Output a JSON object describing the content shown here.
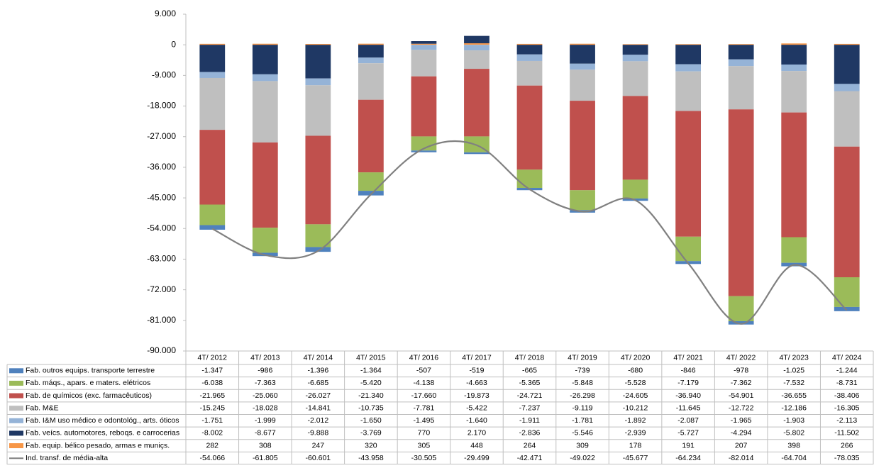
{
  "chart_data": {
    "type": "bar",
    "categories": [
      "4T/ 2012",
      "4T/ 2013",
      "4T/ 2014",
      "4T/ 2015",
      "4T/ 2016",
      "4T/ 2017",
      "4T/ 2018",
      "4T/ 2019",
      "4T/ 2020",
      "4T/ 2021",
      "4T/ 2022",
      "4T/ 2023",
      "4T/ 2024"
    ],
    "ylim": [
      -90000,
      9000
    ],
    "yticks": [
      {
        "value": 9000,
        "label": "9.000"
      },
      0,
      {
        "value": -9000,
        "label": "-9.000"
      },
      {
        "value": -18000,
        "label": "-18.000"
      },
      {
        "value": -27000,
        "label": "-27.000"
      },
      {
        "value": -36000,
        "label": "-36.000"
      },
      {
        "value": -45000,
        "label": "-45.000"
      },
      {
        "value": -54000,
        "label": "-54.000"
      },
      {
        "value": -63000,
        "label": "-63.000"
      },
      {
        "value": -72000,
        "label": "-72.000"
      },
      {
        "value": -81000,
        "label": "-81.000"
      },
      {
        "value": -90000,
        "label": "-90.000"
      }
    ],
    "grid": false,
    "series": [
      {
        "name": "Fab. outros equips. transporte terrestre",
        "color": "#4f81bd",
        "values": [
          -1347,
          -986,
          -1396,
          -1364,
          -507,
          -519,
          -665,
          -739,
          -680,
          -846,
          -978,
          -1025,
          -1244
        ],
        "value_labels": [
          "-1.347",
          "-986",
          "-1.396",
          "-1.364",
          "-507",
          "-519",
          "-665",
          "-739",
          "-680",
          "-846",
          "-978",
          "-1.025",
          "-1.244"
        ]
      },
      {
        "name": "Fab. máqs., apars. e maters. elétricos",
        "color": "#9bbb59",
        "values": [
          -6038,
          -7363,
          -6685,
          -5420,
          -4138,
          -4663,
          -5365,
          -5848,
          -5528,
          -7179,
          -7362,
          -7532,
          -8731
        ],
        "value_labels": [
          "-6.038",
          "-7.363",
          "-6.685",
          "-5.420",
          "-4.138",
          "-4.663",
          "-5.365",
          "-5.848",
          "-5.528",
          "-7.179",
          "-7.362",
          "-7.532",
          "-8.731"
        ]
      },
      {
        "name": "Fab. de químicos (exc. farmacêuticos)",
        "color": "#c0504d",
        "values": [
          -21965,
          -25060,
          -26027,
          -21340,
          -17660,
          -19873,
          -24721,
          -26298,
          -24605,
          -36940,
          -54901,
          -36655,
          -38406
        ],
        "value_labels": [
          "-21.965",
          "-25.060",
          "-26.027",
          "-21.340",
          "-17.660",
          "-19.873",
          "-24.721",
          "-26.298",
          "-24.605",
          "-36.940",
          "-54.901",
          "-36.655",
          "-38.406"
        ]
      },
      {
        "name": "Fab. M&E",
        "color": "#bfbfbf",
        "values": [
          -15245,
          -18028,
          -14841,
          -10735,
          -7781,
          -5422,
          -7237,
          -9119,
          -10212,
          -11645,
          -12722,
          -12186,
          -16305
        ],
        "value_labels": [
          "-15.245",
          "-18.028",
          "-14.841",
          "-10.735",
          "-7.781",
          "-5.422",
          "-7.237",
          "-9.119",
          "-10.212",
          "-11.645",
          "-12.722",
          "-12.186",
          "-16.305"
        ]
      },
      {
        "name": "Fab. I&M uso médico e odontológ., arts. óticos",
        "color": "#95b3d7",
        "values": [
          -1751,
          -1999,
          -2012,
          -1650,
          -1495,
          -1640,
          -1911,
          -1781,
          -1892,
          -2087,
          -1965,
          -1903,
          -2113
        ],
        "value_labels": [
          "-1.751",
          "-1.999",
          "-2.012",
          "-1.650",
          "-1.495",
          "-1.640",
          "-1.911",
          "-1.781",
          "-1.892",
          "-2.087",
          "-1.965",
          "-1.903",
          "-2.113"
        ]
      },
      {
        "name": "Fab. veícs. automotores, reboqs. e carrocerias",
        "color": "#1f3864",
        "values": [
          -8002,
          -8677,
          -9888,
          -3769,
          770,
          2170,
          -2836,
          -5546,
          -2939,
          -5727,
          -4294,
          -5802,
          -11502
        ],
        "value_labels": [
          "-8.002",
          "-8.677",
          "-9.888",
          "-3.769",
          "770",
          "2.170",
          "-2.836",
          "-5.546",
          "-2.939",
          "-5.727",
          "-4.294",
          "-5.802",
          "-11.502"
        ]
      },
      {
        "name": "Fab. equip. bélico pesado, armas e muniçs.",
        "color": "#f79646",
        "values": [
          282,
          308,
          247,
          320,
          305,
          448,
          264,
          309,
          178,
          191,
          207,
          398,
          266
        ],
        "value_labels": [
          "282",
          "308",
          "247",
          "320",
          "305",
          "448",
          "264",
          "309",
          "178",
          "191",
          "207",
          "398",
          "266"
        ]
      },
      {
        "name": "Ind. transf. de média-alta",
        "color": "#808080",
        "type": "line",
        "values": [
          -54066,
          -61805,
          -60601,
          -43958,
          -30505,
          -29499,
          -42471,
          -49022,
          -45677,
          -64234,
          -82014,
          -64704,
          -78035
        ],
        "value_labels": [
          "-54.066",
          "-61.805",
          "-60.601",
          "-43.958",
          "-30.505",
          "-29.499",
          "-42.471",
          "-49.022",
          "-45.677",
          "-64.234",
          "-82.014",
          "-64.704",
          "-78.035"
        ]
      }
    ]
  }
}
